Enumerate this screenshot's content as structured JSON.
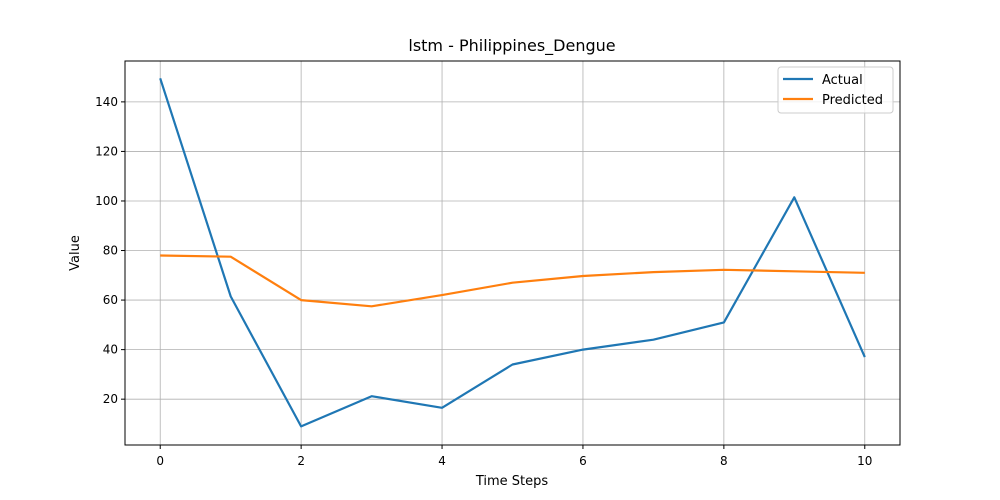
{
  "chart_data": {
    "type": "line",
    "title": "lstm - Philippines_Dengue",
    "xlabel": "Time Steps",
    "ylabel": "Value",
    "x": [
      0,
      1,
      2,
      3,
      4,
      5,
      6,
      7,
      8,
      9,
      10
    ],
    "xlim": [
      -0.5,
      10.5
    ],
    "ylim": [
      1.5,
      156.5
    ],
    "xticks": [
      0,
      2,
      4,
      6,
      8,
      10
    ],
    "yticks": [
      20,
      40,
      60,
      80,
      100,
      120,
      140
    ],
    "grid": true,
    "legend_position": "top-right",
    "series": [
      {
        "name": "Actual",
        "color": "#1f77b4",
        "values": [
          149.5,
          61.5,
          9.0,
          21.2,
          16.5,
          34.0,
          40.0,
          44.0,
          51.0,
          101.5,
          37.0
        ]
      },
      {
        "name": "Predicted",
        "color": "#ff7f0e",
        "values": [
          78.0,
          77.5,
          60.0,
          57.5,
          62.0,
          67.0,
          69.7,
          71.3,
          72.2,
          71.6,
          71.0
        ]
      }
    ]
  }
}
